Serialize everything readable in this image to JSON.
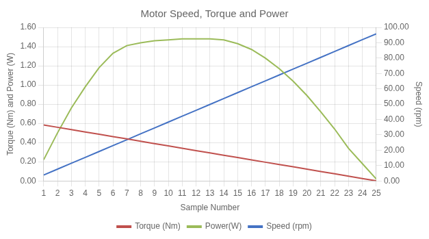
{
  "chart_data": {
    "type": "line",
    "title": "Motor Speed, Torque and Power",
    "xlabel": "Sample Number",
    "ylabel": "Torque (Nm) and Power (W)",
    "y2label": "Speed (rpm)",
    "x": [
      1,
      2,
      3,
      4,
      5,
      6,
      7,
      8,
      9,
      10,
      11,
      12,
      13,
      14,
      15,
      16,
      17,
      18,
      19,
      20,
      21,
      22,
      23,
      24,
      25
    ],
    "xlim": [
      1,
      25
    ],
    "xticks": [
      1,
      2,
      3,
      4,
      5,
      6,
      7,
      8,
      9,
      10,
      11,
      12,
      13,
      14,
      15,
      16,
      17,
      18,
      19,
      20,
      21,
      22,
      23,
      24,
      25
    ],
    "ylim": [
      0.0,
      1.6
    ],
    "yticks": [
      {
        "value": 0.0,
        "label": "0.00"
      },
      {
        "value": 0.2,
        "label": "0.20"
      },
      {
        "value": 0.4,
        "label": "0.40"
      },
      {
        "value": 0.6,
        "label": "0.60"
      },
      {
        "value": 0.8,
        "label": "0.80"
      },
      {
        "value": 1.0,
        "label": "1.00"
      },
      {
        "value": 1.2,
        "label": "1.20"
      },
      {
        "value": 1.4,
        "label": "1.40"
      },
      {
        "value": 1.6,
        "label": "1.60"
      }
    ],
    "y2lim": [
      0.0,
      100.0
    ],
    "y2ticks": [
      {
        "value": 0,
        "label": "0.00"
      },
      {
        "value": 10,
        "label": "10.00"
      },
      {
        "value": 20,
        "label": "20.00"
      },
      {
        "value": 30,
        "label": "30.00"
      },
      {
        "value": 40,
        "label": "40.00"
      },
      {
        "value": 50,
        "label": "50.00"
      },
      {
        "value": 60,
        "label": "60.00"
      },
      {
        "value": 70,
        "label": "70.00"
      },
      {
        "value": 80,
        "label": "80.00"
      },
      {
        "value": 90,
        "label": "90.00"
      },
      {
        "value": 100,
        "label": "100.00"
      }
    ],
    "series": [
      {
        "name": "Torque (Nm)",
        "color": "#c0504d",
        "values": [
          0.583,
          0.559,
          0.535,
          0.51,
          0.486,
          0.462,
          0.438,
          0.413,
          0.389,
          0.365,
          0.341,
          0.316,
          0.292,
          0.268,
          0.244,
          0.219,
          0.195,
          0.171,
          0.147,
          0.122,
          0.098,
          0.074,
          0.05,
          0.025,
          0.001
        ]
      },
      {
        "name": "Power(W)",
        "color": "#9bbb59",
        "values": [
          0.22,
          0.5,
          0.76,
          0.98,
          1.18,
          1.33,
          1.41,
          1.44,
          1.46,
          1.47,
          1.48,
          1.48,
          1.48,
          1.47,
          1.43,
          1.37,
          1.28,
          1.17,
          1.04,
          0.89,
          0.72,
          0.54,
          0.34,
          0.18,
          0.02
        ]
      },
      {
        "name": "Speed (rpm)",
        "color": "#4472c4",
        "axis": "y2",
        "values": [
          3.83,
          7.66,
          11.5,
          15.33,
          19.17,
          23.0,
          26.83,
          30.67,
          34.5,
          38.33,
          42.17,
          46.0,
          49.83,
          53.67,
          57.5,
          61.33,
          65.17,
          69.0,
          72.83,
          76.67,
          80.5,
          84.33,
          88.17,
          92.0,
          95.83
        ]
      }
    ],
    "grid": true,
    "legend": "bottom"
  }
}
